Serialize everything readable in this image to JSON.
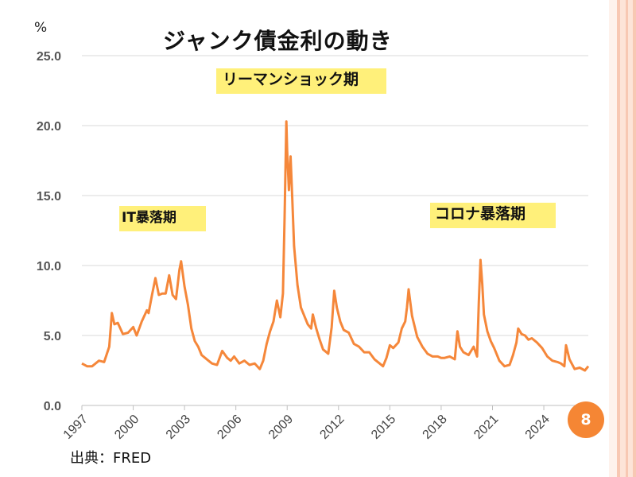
{
  "slide": {
    "title": "ジャンク債金利の動き",
    "unit": "%",
    "source": "出典：FRED",
    "page_number": "8",
    "annotations": [
      {
        "text": "リーマンショック期"
      },
      {
        "text": "IT暴落期"
      },
      {
        "text": "コロナ暴落期"
      }
    ]
  },
  "colors": {
    "line": "#f5873a",
    "note_bg": "#fff07a",
    "badge": "#f58634",
    "grid": "#d9d9d9",
    "stripe_outer": "#f8c8b3",
    "stripe_inner": "#fde4d8"
  },
  "chart_data": {
    "type": "line",
    "title": "ジャンク債金利の動き",
    "ylabel": "%",
    "xlabel": "",
    "ylim": [
      0,
      25
    ],
    "xlim": [
      1997,
      2026.6
    ],
    "y_ticks": [
      "0.0",
      "5.0",
      "10.0",
      "15.0",
      "20.0",
      "25.0"
    ],
    "x_ticks": [
      "1997",
      "2000",
      "2003",
      "2006",
      "2009",
      "2012",
      "2015",
      "2018",
      "2021",
      "2024"
    ],
    "grid": true,
    "legend": "none",
    "series": [
      {
        "x": [
          1997.0,
          1997.3,
          1997.6,
          1998.0,
          1998.3,
          1998.6,
          1998.75,
          1998.9,
          1999.1,
          1999.4,
          1999.7,
          2000.0,
          2000.2,
          2000.5,
          2000.8,
          2000.9,
          2001.1,
          2001.3,
          2001.5,
          2001.7,
          2001.9,
          2002.1,
          2002.3,
          2002.5,
          2002.7,
          2002.8,
          2003.0,
          2003.2,
          2003.4,
          2003.6,
          2003.8,
          2004.0,
          2004.3,
          2004.6,
          2004.9,
          2005.2,
          2005.5,
          2005.7,
          2005.9,
          2006.2,
          2006.5,
          2006.8,
          2007.1,
          2007.4,
          2007.6,
          2007.8,
          2008.0,
          2008.2,
          2008.4,
          2008.6,
          2008.75,
          2008.85,
          2008.95,
          2009.0,
          2009.1,
          2009.2,
          2009.3,
          2009.4,
          2009.6,
          2009.8,
          2010.0,
          2010.2,
          2010.4,
          2010.5,
          2010.7,
          2010.9,
          2011.1,
          2011.4,
          2011.6,
          2011.75,
          2011.9,
          2012.1,
          2012.3,
          2012.6,
          2012.9,
          2013.2,
          2013.5,
          2013.8,
          2014.1,
          2014.4,
          2014.6,
          2014.8,
          2015.0,
          2015.2,
          2015.5,
          2015.7,
          2015.9,
          2016.0,
          2016.1,
          2016.3,
          2016.6,
          2016.9,
          2017.2,
          2017.5,
          2017.8,
          2018.0,
          2018.2,
          2018.5,
          2018.8,
          2018.95,
          2019.1,
          2019.3,
          2019.6,
          2019.9,
          2020.1,
          2020.2,
          2020.3,
          2020.4,
          2020.5,
          2020.7,
          2020.9,
          2021.1,
          2021.4,
          2021.7,
          2022.0,
          2022.2,
          2022.4,
          2022.5,
          2022.7,
          2022.9,
          2023.1,
          2023.3,
          2023.6,
          2023.9,
          2024.2,
          2024.5,
          2024.8,
          2025.0,
          2025.2,
          2025.3,
          2025.5,
          2025.8,
          2026.1,
          2026.4,
          2026.6
        ],
        "values": [
          3.0,
          2.8,
          2.8,
          3.2,
          3.1,
          4.2,
          6.6,
          5.8,
          5.9,
          5.1,
          5.2,
          5.6,
          5.0,
          6.0,
          6.8,
          6.6,
          7.9,
          9.1,
          7.9,
          8.0,
          8.0,
          9.3,
          7.9,
          7.6,
          9.7,
          10.3,
          8.5,
          7.2,
          5.5,
          4.6,
          4.2,
          3.6,
          3.3,
          3.0,
          2.9,
          3.9,
          3.4,
          3.2,
          3.5,
          3.0,
          3.2,
          2.9,
          3.0,
          2.6,
          3.2,
          4.4,
          5.3,
          6.0,
          7.5,
          6.3,
          8.0,
          13.5,
          20.3,
          18.2,
          15.4,
          17.8,
          14.7,
          11.4,
          8.6,
          7.0,
          6.4,
          5.8,
          5.5,
          6.5,
          5.5,
          4.7,
          4.0,
          3.7,
          5.6,
          8.2,
          7.0,
          6.0,
          5.4,
          5.2,
          4.4,
          4.2,
          3.8,
          3.8,
          3.3,
          3.0,
          2.8,
          3.4,
          4.3,
          4.1,
          4.5,
          5.5,
          6.0,
          7.0,
          8.3,
          6.4,
          4.9,
          4.2,
          3.7,
          3.5,
          3.5,
          3.4,
          3.4,
          3.5,
          3.3,
          5.3,
          4.2,
          3.8,
          3.6,
          4.2,
          3.5,
          7.4,
          10.4,
          8.7,
          6.5,
          5.3,
          4.6,
          4.1,
          3.2,
          2.8,
          2.9,
          3.6,
          4.5,
          5.5,
          5.1,
          5.0,
          4.7,
          4.8,
          4.5,
          4.1,
          3.5,
          3.2,
          3.1,
          3.0,
          2.8,
          4.3,
          3.3,
          2.6,
          2.7,
          2.5,
          2.8
        ]
      }
    ]
  }
}
